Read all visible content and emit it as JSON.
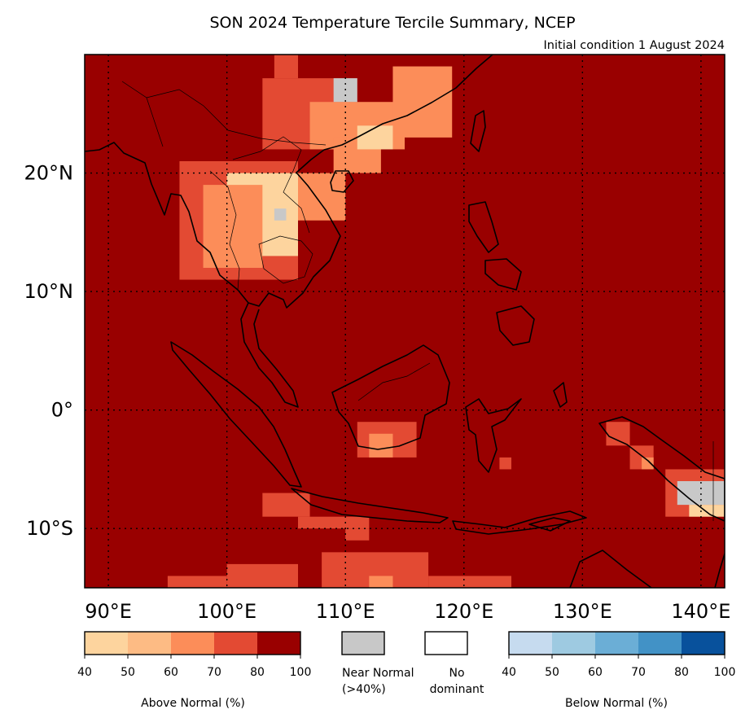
{
  "chart_data": {
    "type": "heatmap",
    "title": "SON 2024 Temperature Tercile Summary, NCEP",
    "subtitle": "Initial condition 1 August 2024",
    "xlabel": "",
    "ylabel": "",
    "xlim": [
      88,
      142
    ],
    "ylim": [
      -15,
      30
    ],
    "grid": true,
    "x_ticks": [
      90,
      100,
      110,
      120,
      130,
      140
    ],
    "x_tick_labels": [
      "90°E",
      "100°E",
      "110°E",
      "120°E",
      "130°E",
      "140°E"
    ],
    "y_ticks": [
      20,
      10,
      0,
      -10
    ],
    "y_tick_labels": [
      "20°N",
      "10°N",
      "0°",
      "10°S"
    ],
    "background_category": "above_80_100",
    "regions": [
      {
        "category": "above_70_80",
        "lon": [
          104,
          106
        ],
        "lat": [
          28,
          30
        ]
      },
      {
        "category": "above_70_80",
        "lon": [
          103,
          111
        ],
        "lat": [
          22,
          28
        ]
      },
      {
        "category": "above_60_70",
        "lon": [
          107,
          115
        ],
        "lat": [
          22,
          26
        ]
      },
      {
        "category": "above_60_70",
        "lon": [
          114,
          119
        ],
        "lat": [
          23,
          29
        ]
      },
      {
        "category": "above_60_70",
        "lon": [
          109,
          113
        ],
        "lat": [
          20,
          23
        ]
      },
      {
        "category": "above_60_70",
        "lon": [
          103,
          110
        ],
        "lat": [
          16,
          20
        ]
      },
      {
        "category": "above_70_80",
        "lon": [
          96,
          106
        ],
        "lat": [
          11,
          21
        ]
      },
      {
        "category": "above_40_50",
        "lon": [
          100,
          106
        ],
        "lat": [
          13,
          20
        ]
      },
      {
        "category": "above_60_70",
        "lon": [
          98,
          103
        ],
        "lat": [
          12,
          19
        ]
      },
      {
        "category": "above_40_50",
        "lon": [
          111,
          114
        ],
        "lat": [
          22,
          24
        ]
      },
      {
        "category": "near_normal",
        "lon": [
          109,
          111
        ],
        "lat": [
          26,
          28
        ]
      },
      {
        "category": "near_normal",
        "lon": [
          104,
          105
        ],
        "lat": [
          16,
          17
        ]
      },
      {
        "category": "above_70_80",
        "lon": [
          111,
          116
        ],
        "lat": [
          -4,
          -1
        ]
      },
      {
        "category": "above_60_70",
        "lon": [
          112,
          114
        ],
        "lat": [
          -4,
          -2
        ]
      },
      {
        "category": "above_70_80",
        "lon": [
          123,
          124
        ],
        "lat": [
          -5,
          -4
        ]
      },
      {
        "category": "above_70_80",
        "lon": [
          132,
          134
        ],
        "lat": [
          -3,
          -1
        ]
      },
      {
        "category": "above_70_80",
        "lon": [
          134,
          136
        ],
        "lat": [
          -5,
          -3
        ]
      },
      {
        "category": "above_60_70",
        "lon": [
          135,
          136
        ],
        "lat": [
          -5,
          -4
        ]
      },
      {
        "category": "above_70_80",
        "lon": [
          137,
          142
        ],
        "lat": [
          -9,
          -5
        ]
      },
      {
        "category": "near_normal",
        "lon": [
          138,
          142
        ],
        "lat": [
          -8,
          -6
        ]
      },
      {
        "category": "above_40_50",
        "lon": [
          139,
          142
        ],
        "lat": [
          -9,
          -8
        ]
      },
      {
        "category": "above_70_80",
        "lon": [
          103,
          107
        ],
        "lat": [
          -9,
          -7
        ]
      },
      {
        "category": "above_70_80",
        "lon": [
          106,
          112
        ],
        "lat": [
          -10,
          -9
        ]
      },
      {
        "category": "above_70_80",
        "lon": [
          110,
          112
        ],
        "lat": [
          -11,
          -10
        ]
      },
      {
        "category": "above_70_80",
        "lon": [
          100,
          106
        ],
        "lat": [
          -15,
          -13
        ]
      },
      {
        "category": "above_70_80",
        "lon": [
          108,
          117
        ],
        "lat": [
          -15,
          -12
        ]
      },
      {
        "category": "above_60_70",
        "lon": [
          112,
          114
        ],
        "lat": [
          -15,
          -14
        ]
      },
      {
        "category": "above_70_80",
        "lon": [
          95,
          100
        ],
        "lat": [
          -15,
          -14
        ]
      },
      {
        "category": "above_70_80",
        "lon": [
          117,
          124
        ],
        "lat": [
          -15,
          -14
        ]
      }
    ]
  },
  "legend": {
    "above": {
      "title": "Above Normal (%)",
      "ticks": [
        "40",
        "50",
        "60",
        "70",
        "80",
        "100"
      ],
      "colors": [
        "#fdd49e",
        "#fdbb84",
        "#fc8d59",
        "#e34a33",
        "#990000"
      ]
    },
    "near_normal": {
      "label_line1": "Near Normal",
      "label_line2": "(>40%)",
      "color": "#c8c8c8"
    },
    "no_dominant": {
      "label_line1": "No",
      "label_line2": "dominant",
      "color": "#ffffff"
    },
    "below": {
      "title": "Below Normal (%)",
      "ticks": [
        "40",
        "50",
        "60",
        "70",
        "80",
        "100"
      ],
      "colors": [
        "#c6dbef",
        "#9ecae1",
        "#6baed6",
        "#4292c6",
        "#08519c"
      ]
    }
  },
  "colors": {
    "above_40_50": "#fdd49e",
    "above_60_70": "#fc8d59",
    "above_70_80": "#e34a33",
    "above_80_100": "#990000",
    "near_normal": "#c8c8c8",
    "coastline": "#000000"
  }
}
